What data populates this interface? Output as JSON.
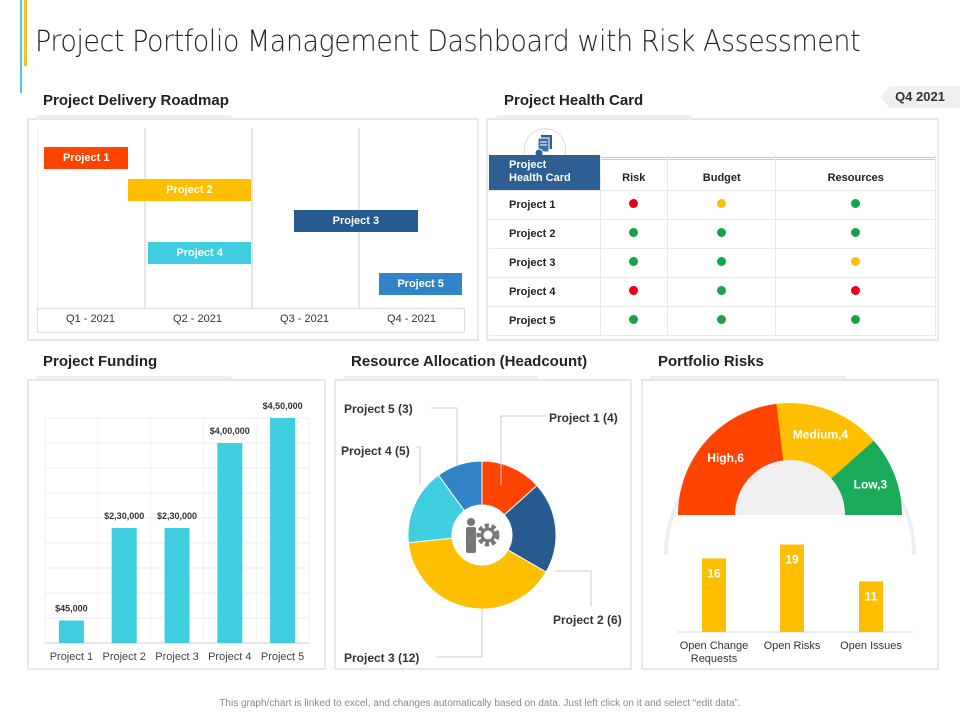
{
  "title": "Project Portfolio Management Dashboard with Risk Assessment",
  "period_badge": "Q4 2021",
  "roadmap": {
    "heading": "Project Delivery Roadmap",
    "quarters": [
      "Q1 - 2021",
      "Q2 - 2021",
      "Q3 - 2021",
      "Q4 - 2021"
    ],
    "projects": [
      {
        "label": "Project 1",
        "start_q": 0.07,
        "end_q": 0.85,
        "color": "#fe4400"
      },
      {
        "label": "Project 2",
        "start_q": 0.85,
        "end_q": 2.0,
        "color": "#fdbf00"
      },
      {
        "label": "Project 3",
        "start_q": 2.4,
        "end_q": 3.56,
        "color": "#275a8e"
      },
      {
        "label": "Project 4",
        "start_q": 1.04,
        "end_q": 2.0,
        "color": "#3fcee0"
      },
      {
        "label": "Project 5",
        "start_q": 3.2,
        "end_q": 3.97,
        "color": "#3283c8"
      }
    ]
  },
  "health": {
    "heading": "Project Health Card",
    "corner": "Project\nHealth Card",
    "columns": [
      "Risk",
      "Budget",
      "Resources"
    ],
    "status_colors": {
      "red": "#e60012",
      "yellow": "#fcbd13",
      "green": "#16a34a"
    },
    "rows": [
      {
        "name": "Project 1",
        "status": [
          "red",
          "yellow",
          "green"
        ]
      },
      {
        "name": "Project 2",
        "status": [
          "green",
          "green",
          "green"
        ]
      },
      {
        "name": "Project 3",
        "status": [
          "green",
          "green",
          "yellow"
        ]
      },
      {
        "name": "Project 4",
        "status": [
          "red",
          "green",
          "red"
        ]
      },
      {
        "name": "Project 5",
        "status": [
          "green",
          "green",
          "green"
        ]
      }
    ]
  },
  "funding": {
    "heading": "Project Funding",
    "chart_data": {
      "type": "bar",
      "categories": [
        "Project 1",
        "Project 2",
        "Project 3",
        "Project 4",
        "Project 5"
      ],
      "values": [
        45000,
        230000,
        230000,
        400000,
        450000
      ],
      "labels": [
        "$45,000",
        "$2,30,000",
        "$2,30,000",
        "$4,00,000",
        "$4,50,000"
      ],
      "ylim": [
        0,
        450000
      ],
      "grid": true,
      "color": "#3fcee0"
    }
  },
  "resources": {
    "heading": "Resource Allocation (Headcount)",
    "chart_data": {
      "type": "pie",
      "donut": true,
      "slices": [
        {
          "label": "Project 1 (4)",
          "value": 4,
          "color": "#fe4400"
        },
        {
          "label": "Project 2 (6)",
          "value": 6,
          "color": "#275a8e"
        },
        {
          "label": "Project 3 (12)",
          "value": 12,
          "color": "#fdbf00"
        },
        {
          "label": "Project 4 (5)",
          "value": 5,
          "color": "#3fcee0"
        },
        {
          "label": "Project 5 (3)",
          "value": 3,
          "color": "#3283c8"
        }
      ]
    }
  },
  "risks": {
    "heading": "Portfolio Risks",
    "gauge": {
      "type": "pie",
      "half": true,
      "slices": [
        {
          "label": "High,6",
          "value": 6,
          "color": "#fe4400"
        },
        {
          "label": "Medium,4",
          "value": 4,
          "color": "#fdbf00"
        },
        {
          "label": "Low,3",
          "value": 3,
          "color": "#1aab5a"
        }
      ]
    },
    "bars": {
      "type": "bar",
      "categories": [
        "Open Change\nRequests",
        "Open Risks",
        "Open Issues"
      ],
      "values": [
        16,
        19,
        11
      ],
      "color": "#fdbf00"
    }
  },
  "footer": "This graph/chart is linked to excel, and changes automatically based on data. Just left click on it and select “edit data”."
}
